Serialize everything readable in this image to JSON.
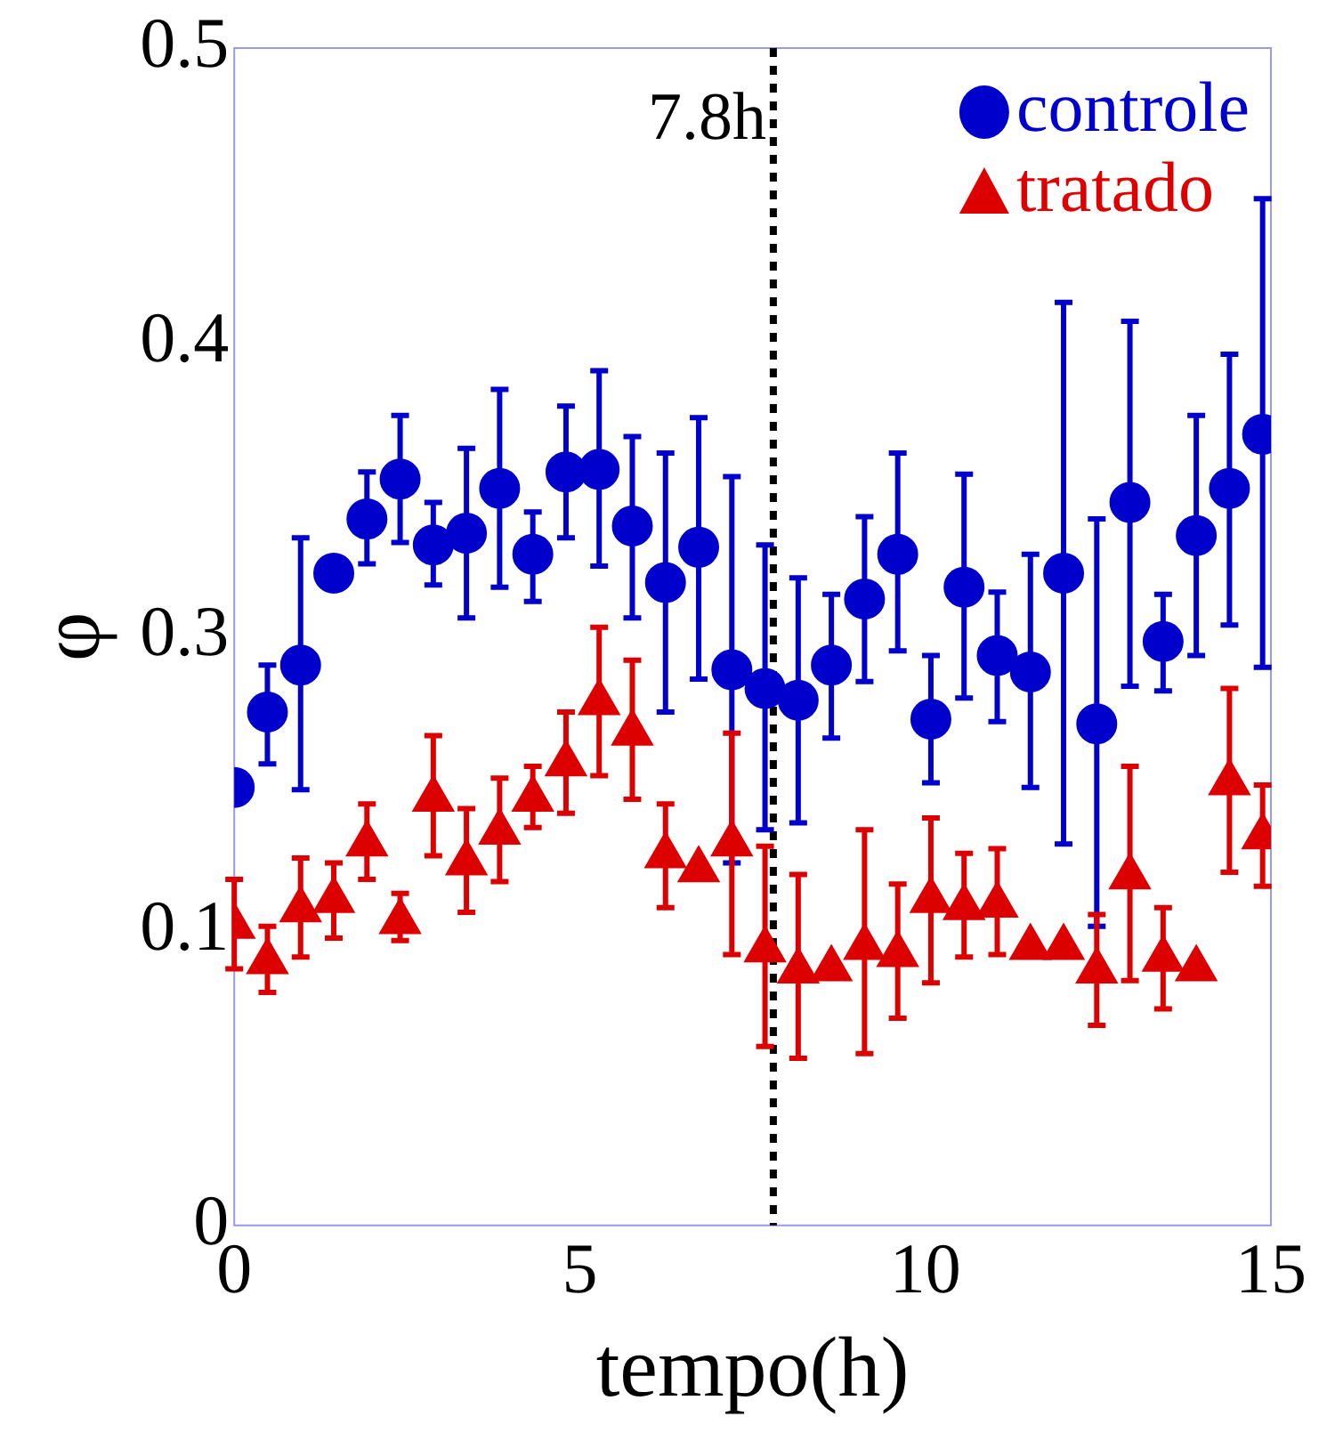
{
  "chart_data": {
    "type": "scatter",
    "xlabel": "tempo(h)",
    "ylabel": "φ",
    "x": [
      0,
      0.48,
      0.96,
      1.44,
      1.92,
      2.4,
      2.88,
      3.36,
      3.84,
      4.32,
      4.8,
      5.28,
      5.76,
      6.24,
      6.72,
      7.2,
      7.68,
      8.16,
      8.64,
      9.12,
      9.6,
      10.08,
      10.56,
      11.04,
      11.52,
      12,
      12.48,
      12.96,
      13.44,
      13.92,
      14.4,
      14.88
    ],
    "series": [
      {
        "name": "controle",
        "color": "#0000cc",
        "marker": "circle",
        "values": [
          0.186,
          0.218,
          0.238,
          0.277,
          0.3,
          0.317,
          0.289,
          0.294,
          0.313,
          0.285,
          0.32,
          0.321,
          0.297,
          0.273,
          0.288,
          0.236,
          0.228,
          0.223,
          0.238,
          0.266,
          0.285,
          0.215,
          0.271,
          0.242,
          0.235,
          0.277,
          0.213,
          0.307,
          0.248,
          0.293,
          0.313,
          0.336
        ],
        "errors": [
          null,
          [
            0.196,
            0.238
          ],
          [
            0.185,
            0.292
          ],
          null,
          [
            0.281,
            0.32
          ],
          [
            0.29,
            0.344
          ],
          [
            0.272,
            0.307
          ],
          [
            0.258,
            0.33
          ],
          [
            0.271,
            0.355
          ],
          [
            0.265,
            0.303
          ],
          [
            0.292,
            0.348
          ],
          [
            0.28,
            0.363
          ],
          [
            0.258,
            0.335
          ],
          [
            0.218,
            0.328
          ],
          [
            0.232,
            0.343
          ],
          [
            0.154,
            0.318
          ],
          [
            0.168,
            0.289
          ],
          [
            0.171,
            0.275
          ],
          [
            0.207,
            0.268
          ],
          [
            0.231,
            0.301
          ],
          [
            0.244,
            0.328
          ],
          [
            0.188,
            0.242
          ],
          [
            0.224,
            0.319
          ],
          [
            0.214,
            0.269
          ],
          [
            0.186,
            0.285
          ],
          [
            0.162,
            0.392
          ],
          [
            0.127,
            0.3
          ],
          [
            0.229,
            0.384
          ],
          [
            0.227,
            0.268
          ],
          [
            0.242,
            0.344
          ],
          [
            0.255,
            0.37
          ],
          [
            0.237,
            0.436
          ]
        ]
      },
      {
        "name": "tratado",
        "color": "#dd0000",
        "marker": "triangle",
        "values": [
          0.127,
          0.112,
          0.134,
          0.138,
          0.162,
          0.129,
          0.181,
          0.154,
          0.167,
          0.181,
          0.196,
          0.222,
          0.209,
          0.157,
          0.151,
          0.162,
          0.117,
          0.108,
          0.109,
          0.118,
          0.115,
          0.138,
          0.135,
          0.136,
          0.118,
          0.118,
          0.108,
          0.148,
          0.113,
          0.109,
          0.188,
          0.165
        ],
        "errors": [
          [
            0.109,
            0.147
          ],
          [
            0.099,
            0.127
          ],
          [
            0.114,
            0.156
          ],
          [
            0.122,
            0.154
          ],
          [
            0.147,
            0.179
          ],
          [
            0.121,
            0.141
          ],
          [
            0.157,
            0.208
          ],
          [
            0.133,
            0.177
          ],
          [
            0.146,
            0.19
          ],
          [
            0.169,
            0.195
          ],
          [
            0.175,
            0.218
          ],
          [
            0.191,
            0.254
          ],
          [
            0.181,
            0.24
          ],
          [
            0.135,
            0.179
          ],
          null,
          [
            0.115,
            0.209
          ],
          [
            0.076,
            0.161
          ],
          [
            0.071,
            0.149
          ],
          null,
          [
            0.073,
            0.168
          ],
          [
            0.088,
            0.145
          ],
          [
            0.103,
            0.173
          ],
          [
            0.114,
            0.158
          ],
          [
            0.115,
            0.16
          ],
          null,
          null,
          [
            0.085,
            0.132
          ],
          [
            0.104,
            0.195
          ],
          [
            0.092,
            0.135
          ],
          null,
          [
            0.15,
            0.228
          ],
          [
            0.144,
            0.187
          ]
        ]
      }
    ],
    "xlim": [
      0,
      15
    ],
    "xticks": [
      0,
      5,
      10,
      15
    ],
    "ylim": [
      0,
      0.5
    ],
    "yticks": [
      0,
      {
        "value": 0.125,
        "label": "0.1"
      },
      {
        "value": 0.25,
        "label": "0.3"
      },
      {
        "value": 0.375,
        "label": "0.4"
      },
      0.5
    ],
    "ref_lines": [
      {
        "axis": "x",
        "value": 7.8,
        "label": "7.8h",
        "color": "#000000",
        "line_style": "dotted"
      }
    ],
    "legend": "top right",
    "grid": false
  }
}
